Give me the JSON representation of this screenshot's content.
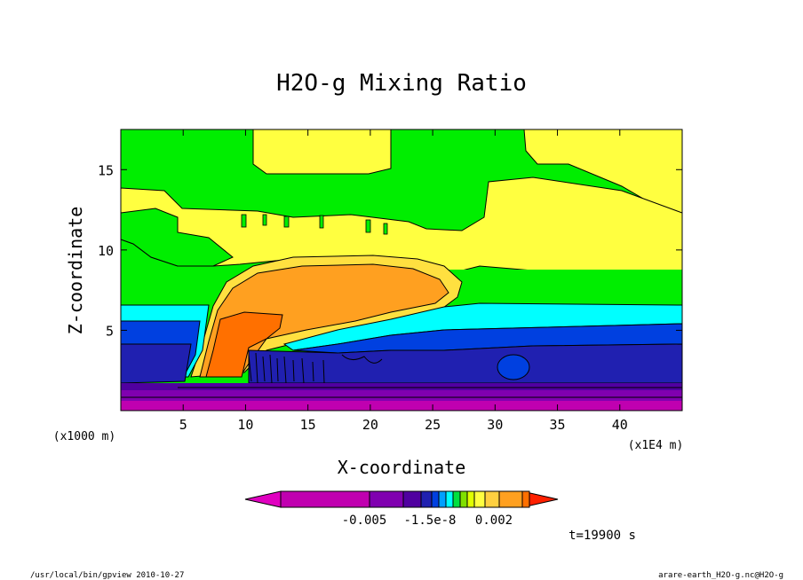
{
  "chart_data": {
    "type": "heatmap",
    "title": "H2O-g Mixing Ratio",
    "xlabel": "X-coordinate",
    "ylabel": "Z-coordinate",
    "x_unit": "(x1E4 m)",
    "y_unit": "(x1000 m)",
    "xlim": [
      0,
      45
    ],
    "ylim": [
      0,
      17.5
    ],
    "x_ticks": [
      "5",
      "10",
      "15",
      "20",
      "25",
      "30",
      "35",
      "40"
    ],
    "x_tick_values": [
      5,
      10,
      15,
      20,
      25,
      30,
      35,
      40
    ],
    "y_ticks": [
      "5",
      "10",
      "15"
    ],
    "y_tick_values": [
      5,
      10,
      15
    ],
    "colorbar": {
      "colors": [
        "#e000c0",
        "#c000b0",
        "#8000b0",
        "#5000a0",
        "#2020b0",
        "#0040e0",
        "#00a0ff",
        "#00ffff",
        "#00e040",
        "#80e000",
        "#e0ff00",
        "#ffff40",
        "#ffd040",
        "#ffa020",
        "#ff7000",
        "#ff2000"
      ],
      "tick_labels": [
        "-0.005",
        "-1.5e-8",
        "0.002"
      ]
    },
    "time_label": "t=19900 s",
    "footer_left": "/usr/local/bin/gpview   2010-10-27",
    "footer_right": "arare-earth_H2O-g.nc@H2O-g"
  }
}
